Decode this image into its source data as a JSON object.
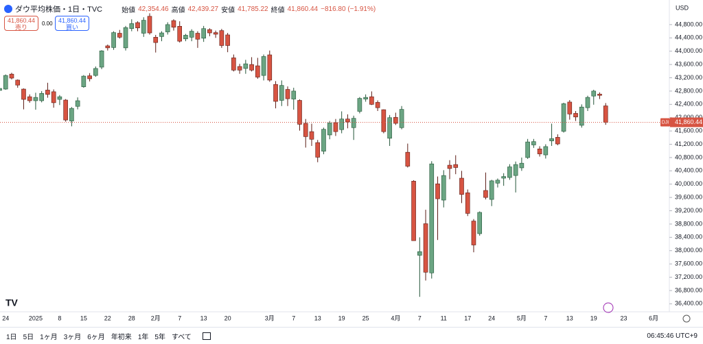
{
  "header": {
    "symbol": "ダウ平均株価・1日・TVC",
    "open_label": "始値",
    "open": "42,354.46",
    "high_label": "高値",
    "high": "42,439.27",
    "low_label": "安値",
    "low": "41,785.22",
    "close_label": "終値",
    "close": "41,860.44",
    "change": "−816.80 (−1.91%)"
  },
  "trade": {
    "sell_price": "41,860.44",
    "sell": "売り",
    "spread": "0.00",
    "buy_price": "41,860.44",
    "buy": "買い"
  },
  "currency": "USD",
  "toolbar": {
    "ranges": [
      "1日",
      "5日",
      "1ヶ月",
      "3ヶ月",
      "6ヶ月",
      "年初来",
      "1年",
      "5年",
      "すべて"
    ],
    "clock": "06:45:46 UTC+9"
  },
  "chart_data": {
    "type": "candlestick",
    "up_color": "#6ba583",
    "down_color": "#d75442",
    "grid": false,
    "categories": [
      null,
      "24",
      null,
      null,
      null,
      null,
      "2025",
      null,
      null,
      null,
      "8",
      null,
      null,
      null,
      "15",
      null,
      null,
      null,
      "22",
      null,
      null,
      null,
      "28",
      null,
      null,
      null,
      "2月",
      null,
      null,
      null,
      "7",
      null,
      null,
      null,
      "13",
      null,
      null,
      null,
      "20",
      null,
      null,
      null,
      null,
      null,
      null,
      "3月",
      null,
      null,
      null,
      "7",
      null,
      null,
      null,
      "13",
      null,
      null,
      null,
      "19",
      null,
      null,
      null,
      "25",
      null,
      null,
      null,
      null,
      "4月",
      null,
      null,
      null,
      "7",
      null,
      null,
      null,
      "11",
      null,
      null,
      null,
      "17",
      null,
      null,
      null,
      "24",
      null,
      null,
      null,
      null,
      "5月",
      null,
      null,
      null,
      "7",
      null,
      null,
      null,
      "13",
      null,
      null,
      null,
      "19",
      null,
      null,
      null,
      null,
      "23",
      null,
      null,
      null,
      null,
      "6月"
    ],
    "open": [
      42820,
      42860,
      43310,
      43130,
      42860,
      42630,
      42510,
      42510,
      42830,
      42780,
      42550,
      42530,
      41900,
      42340,
      42930,
      43260,
      43270,
      43520,
      44160,
      44110,
      44540,
      44100,
      44680,
      44860,
      44540,
      45050,
      44420,
      44440,
      44580,
      44920,
      44750,
      44370,
      44420,
      44540,
      44390,
      44650,
      44560,
      44620,
      44490,
      43800,
      43540,
      43480,
      43600,
      43560,
      43270,
      43890,
      43000,
      42520,
      42850,
      42560,
      42520,
      41830,
      41580,
      41250,
      40990,
      41480,
      41850,
      41640,
      41960,
      41700,
      42190,
      42560,
      42630,
      42460,
      42240,
      41380,
      42010,
      41700,
      40960,
      40090,
      37860,
      38810,
      37330,
      40010,
      39520,
      40570,
      40590,
      40180,
      39740,
      38890,
      38510,
      39810,
      39540,
      40030,
      40180,
      40200,
      40260,
      40490,
      40800,
      41180,
      41060,
      40880,
      41300,
      41410,
      41590,
      42470,
      42130,
      41770,
      42300,
      42650,
      42710,
      42354.46,
      null,
      null,
      null,
      null,
      null,
      null,
      null,
      null
    ],
    "high": [
      42950,
      43300,
      43350,
      43150,
      42880,
      42700,
      42750,
      42800,
      43050,
      42850,
      42680,
      42560,
      42320,
      42610,
      43280,
      43340,
      43540,
      44030,
      44200,
      44600,
      44640,
      44760,
      44960,
      44900,
      45020,
      45140,
      44490,
      44600,
      44870,
      44960,
      44900,
      44520,
      44660,
      44600,
      44760,
      44690,
      44620,
      44670,
      44550,
      43900,
      43620,
      43740,
      43820,
      43800,
      43900,
      44020,
      43100,
      43120,
      42940,
      42900,
      42550,
      41960,
      41820,
      41330,
      41700,
      41900,
      41960,
      42190,
      42100,
      42060,
      42620,
      42700,
      42790,
      42520,
      42250,
      42080,
      42150,
      42350,
      41220,
      40120,
      38400,
      39230,
      40690,
      40230,
      40420,
      40720,
      40870,
      40400,
      39840,
      38950,
      39180,
      40350,
      40130,
      40170,
      40330,
      40600,
      40680,
      40800,
      41360,
      41360,
      41140,
      41200,
      41820,
      41500,
      42450,
      42530,
      42200,
      42400,
      42660,
      42840,
      42760,
      42439.27,
      null,
      null,
      null,
      null,
      null,
      null,
      null,
      null
    ],
    "low": [
      42780,
      42840,
      43150,
      42900,
      42250,
      42450,
      42240,
      42460,
      42600,
      42300,
      42380,
      41880,
      41740,
      42250,
      42900,
      43090,
      43230,
      43460,
      44020,
      44040,
      44380,
      44020,
      44600,
      44600,
      44430,
      44500,
      43960,
      44300,
      44500,
      44620,
      44260,
      44300,
      44300,
      44100,
      44280,
      44450,
      44400,
      44100,
      43970,
      43390,
      43320,
      43320,
      43390,
      43170,
      43120,
      43080,
      42280,
      42350,
      42350,
      42240,
      41610,
      41100,
      41150,
      40660,
      40900,
      41350,
      41450,
      41530,
      41680,
      41330,
      42130,
      42480,
      42380,
      42200,
      41530,
      41150,
      41780,
      41650,
      40500,
      38300,
      36610,
      37100,
      37160,
      38320,
      39300,
      40150,
      40300,
      39430,
      39040,
      37950,
      38450,
      39540,
      39340,
      39900,
      39950,
      40130,
      39750,
      40400,
      40760,
      41090,
      40830,
      40770,
      41150,
      41170,
      41550,
      41940,
      41900,
      41700,
      42200,
      42390,
      42560,
      41785.22,
      null,
      null,
      null,
      null,
      null,
      null,
      null,
      null
    ],
    "close": [
      42880,
      43270,
      43190,
      42980,
      42550,
      42510,
      42610,
      42730,
      42700,
      42450,
      42630,
      41930,
      42280,
      42510,
      43250,
      43170,
      43480,
      44010,
      44100,
      44560,
      44420,
      44710,
      44830,
      44700,
      44930,
      44550,
      44260,
      44550,
      44800,
      44720,
      44300,
      44480,
      44600,
      44360,
      44680,
      44550,
      44510,
      44170,
      44170,
      43430,
      43430,
      43620,
      43430,
      43220,
      43840,
      43130,
      42490,
      42970,
      42570,
      42800,
      41800,
      41430,
      41350,
      40810,
      41650,
      41840,
      41580,
      41960,
      41870,
      41980,
      42580,
      42610,
      42400,
      42300,
      41580,
      42000,
      41830,
      42250,
      40540,
      38300,
      37970,
      37350,
      40610,
      39560,
      40260,
      40470,
      40500,
      39690,
      39120,
      38170,
      39150,
      39600,
      40100,
      40120,
      40230,
      40520,
      40590,
      40630,
      41270,
      41280,
      40910,
      41130,
      41370,
      41210,
      42420,
      42110,
      42020,
      42320,
      42610,
      42800,
      42670,
      41860.44,
      null,
      null,
      null,
      null,
      null,
      null,
      null,
      null
    ],
    "ylim": [
      36160,
      45540
    ],
    "yticks": [
      {
        "value": 36400,
        "label": "36,400.00"
      },
      {
        "value": 36800,
        "label": "36,800.00"
      },
      {
        "value": 37200,
        "label": "37,200.00"
      },
      {
        "value": 37600,
        "label": "37,600.00"
      },
      {
        "value": 38000,
        "label": "38,000.00"
      },
      {
        "value": 38400,
        "label": "38,400.00"
      },
      {
        "value": 38800,
        "label": "38,800.00"
      },
      {
        "value": 39200,
        "label": "39,200.00"
      },
      {
        "value": 39600,
        "label": "39,600.00"
      },
      {
        "value": 40000,
        "label": "40,000.00"
      },
      {
        "value": 40400,
        "label": "40,400.00"
      },
      {
        "value": 40800,
        "label": "40,800.00"
      },
      {
        "value": 41200,
        "label": "41,200.00"
      },
      {
        "value": 41600,
        "label": "41,600.00"
      },
      {
        "value": 42000,
        "label": "42,000.00"
      },
      {
        "value": 42400,
        "label": "42,400.00"
      },
      {
        "value": 42800,
        "label": "42,800.00"
      },
      {
        "value": 43200,
        "label": "43,200.00"
      },
      {
        "value": 43600,
        "label": "43,600.00"
      },
      {
        "value": 44000,
        "label": "44,000.00"
      },
      {
        "value": 44400,
        "label": "44,400.00"
      },
      {
        "value": 44800,
        "label": "44,800.00"
      }
    ],
    "last_price": {
      "value": 41860.44,
      "label": "41,860.44",
      "symbol": "DJI"
    }
  }
}
